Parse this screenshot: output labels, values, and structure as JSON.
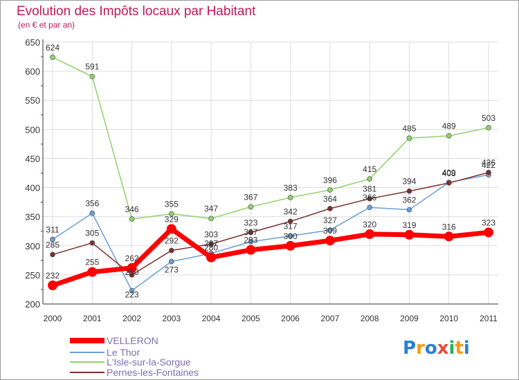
{
  "chart_data": {
    "type": "line",
    "title": "Evolution des Impôts locaux par Habitant",
    "subtitle": "(en € et par an)",
    "xlabel": "",
    "ylabel": "",
    "ylim": [
      200,
      650
    ],
    "yticks": [
      "200",
      "250",
      "300",
      "350",
      "400",
      "450",
      "500",
      "550",
      "600",
      "650"
    ],
    "categories": [
      "2000",
      "2001",
      "2002",
      "2003",
      "2004",
      "2005",
      "2006",
      "2007",
      "2008",
      "2009",
      "2010",
      "2011"
    ],
    "series": [
      {
        "name": "VELLERON",
        "color": "#ff0000",
        "values": [
          232,
          255,
          262,
          329,
          280,
          293,
          300,
          309,
          320,
          319,
          316,
          323
        ]
      },
      {
        "name": "Le Thor",
        "color": "#6a9ed6",
        "values": [
          311,
          356,
          223,
          273,
          287,
          307,
          317,
          327,
          366,
          362,
          409,
          422
        ]
      },
      {
        "name": "L'Isle-sur-la-Sorgue",
        "color": "#8fd16a",
        "values": [
          624,
          591,
          346,
          355,
          347,
          367,
          383,
          396,
          415,
          485,
          489,
          503
        ]
      },
      {
        "name": "Pernes-les-Fontaines",
        "color": "#7a2f2f",
        "values": [
          285,
          305,
          250,
          292,
          303,
          323,
          342,
          364,
          381,
          394,
          408,
          426
        ]
      }
    ],
    "legend_position": "bottom-left"
  },
  "logo": {
    "text": "Proxiti",
    "letters": [
      "P",
      "r",
      "o",
      "x",
      "i",
      "t",
      "i"
    ],
    "colors": [
      "#2a7fd4",
      "#f39c12",
      "#2a7fd4",
      "#e74c3c",
      "#27ae60",
      "#f39c12",
      "#2a7fd4"
    ]
  }
}
